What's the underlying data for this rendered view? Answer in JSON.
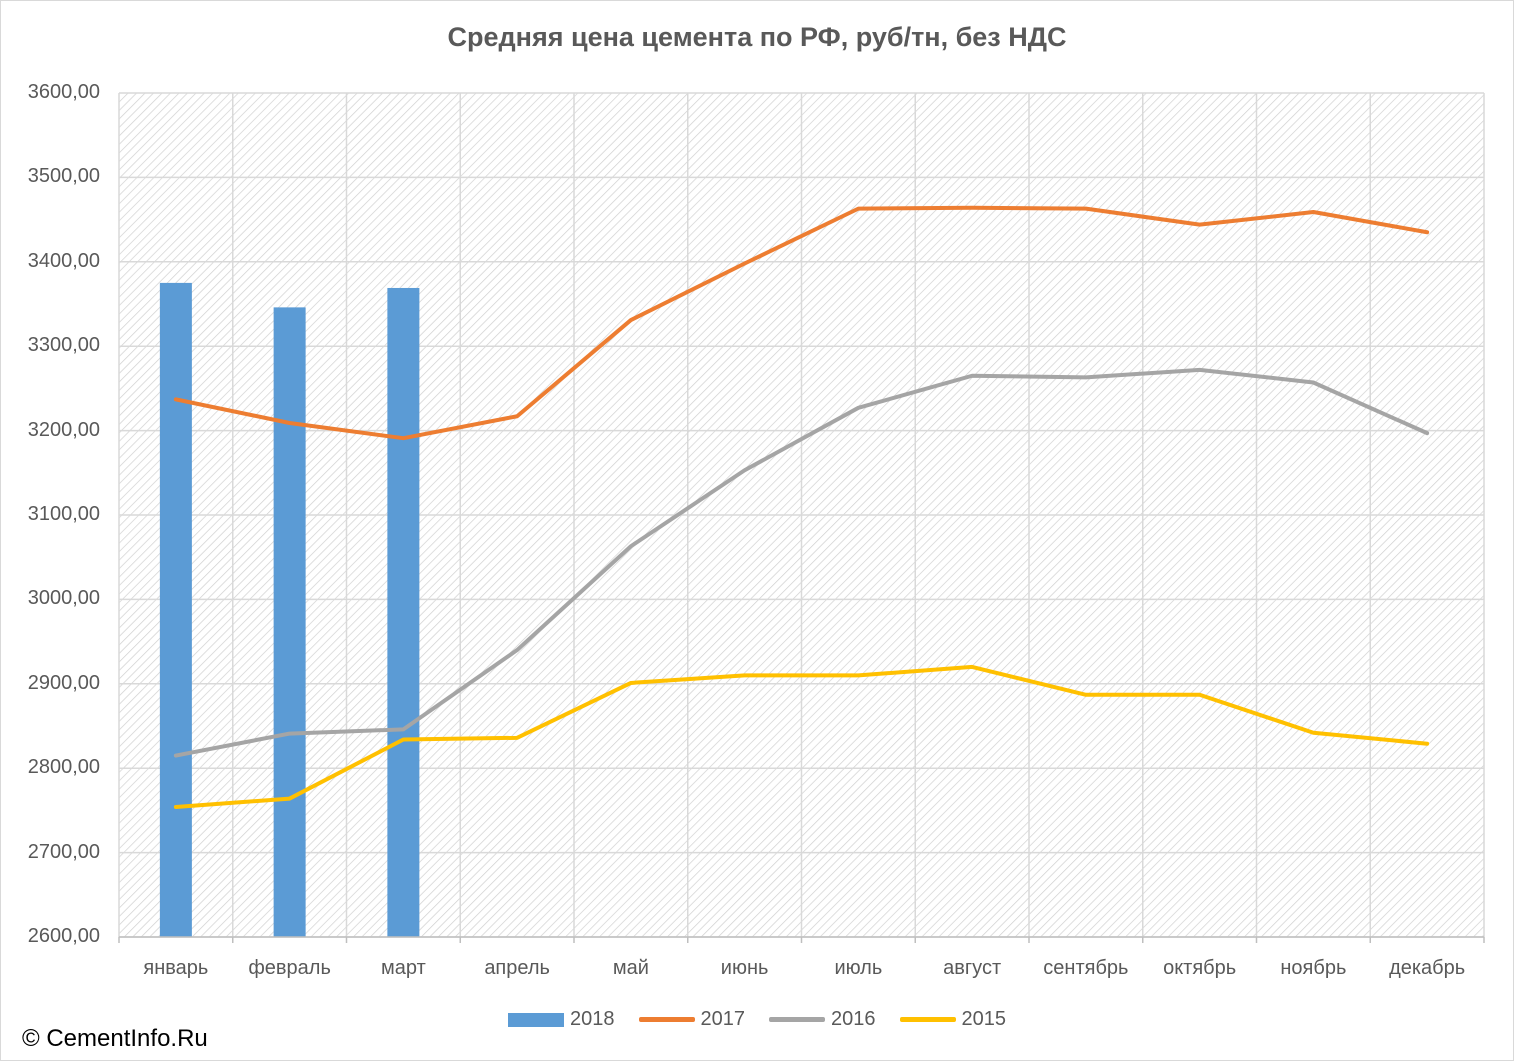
{
  "chart_data": {
    "type": "bar",
    "title": "Средняя цена цемента по РФ, руб/тн, без НДС",
    "categories": [
      "январь",
      "февраль",
      "март",
      "апрель",
      "май",
      "июнь",
      "июль",
      "август",
      "сентябрь",
      "октябрь",
      "ноябрь",
      "декабрь"
    ],
    "ylim": [
      2600,
      3600
    ],
    "yticks": [
      "2600,00",
      "2700,00",
      "2800,00",
      "2900,00",
      "3000,00",
      "3100,00",
      "3200,00",
      "3300,00",
      "3400,00",
      "3500,00",
      "3600,00"
    ],
    "grid": true,
    "legend_position": "bottom",
    "series": [
      {
        "name": "2018",
        "type": "bar",
        "color": "#5b9bd5",
        "values": [
          3375,
          3346,
          3369,
          null,
          null,
          null,
          null,
          null,
          null,
          null,
          null,
          null
        ]
      },
      {
        "name": "2017",
        "type": "line",
        "color": "#ed7d31",
        "values": [
          3237,
          3209,
          3191,
          3217,
          3331,
          3398,
          3463,
          3464,
          3463,
          3444,
          3459,
          3435
        ]
      },
      {
        "name": "2016",
        "type": "line",
        "color": "#a5a5a5",
        "values": [
          2815,
          2841,
          2846,
          2940,
          3063,
          3153,
          3227,
          3265,
          3263,
          3272,
          3257,
          3197
        ]
      },
      {
        "name": "2015",
        "type": "line",
        "color": "#ffc000",
        "values": [
          2754,
          2764,
          2834,
          2836,
          2901,
          2910,
          2910,
          2920,
          2887,
          2887,
          2842,
          2829
        ]
      }
    ]
  },
  "copyright": "© CementInfo.Ru"
}
